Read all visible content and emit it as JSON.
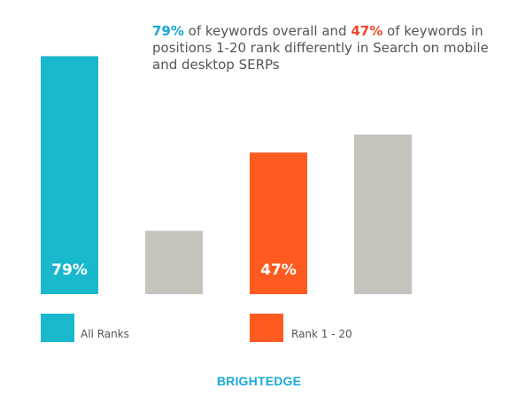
{
  "headline": {
    "pct_overall": "79%",
    "text_1": " of keywords overall and ",
    "pct_top20": "47%",
    "text_2": " of keywords in positions 1-20 rank differently in Search on mobile and desktop SERPs"
  },
  "brand": "BRIGHTEDGE",
  "colors": {
    "cyan": "#1ab8cc",
    "orange": "#ff5a1f",
    "gray": "#c6c2bc",
    "headline_cyan": "#1aa8d6",
    "headline_orange": "#f0492a",
    "label": "#ffffff"
  },
  "chart_data": {
    "type": "bar",
    "title": "",
    "xlabel": "",
    "ylabel": "",
    "ylim": [
      0,
      100
    ],
    "groups": [
      {
        "legend": "All Ranks",
        "bars": [
          {
            "value": 79,
            "label": "79%",
            "color_key": "cyan"
          },
          {
            "value": 21,
            "label": "",
            "color_key": "gray"
          }
        ]
      },
      {
        "legend": "Rank 1 - 20",
        "bars": [
          {
            "value": 47,
            "label": "47%",
            "color_key": "orange"
          },
          {
            "value": 53,
            "label": "",
            "color_key": "gray"
          }
        ]
      }
    ],
    "legend_position": "bottom"
  }
}
